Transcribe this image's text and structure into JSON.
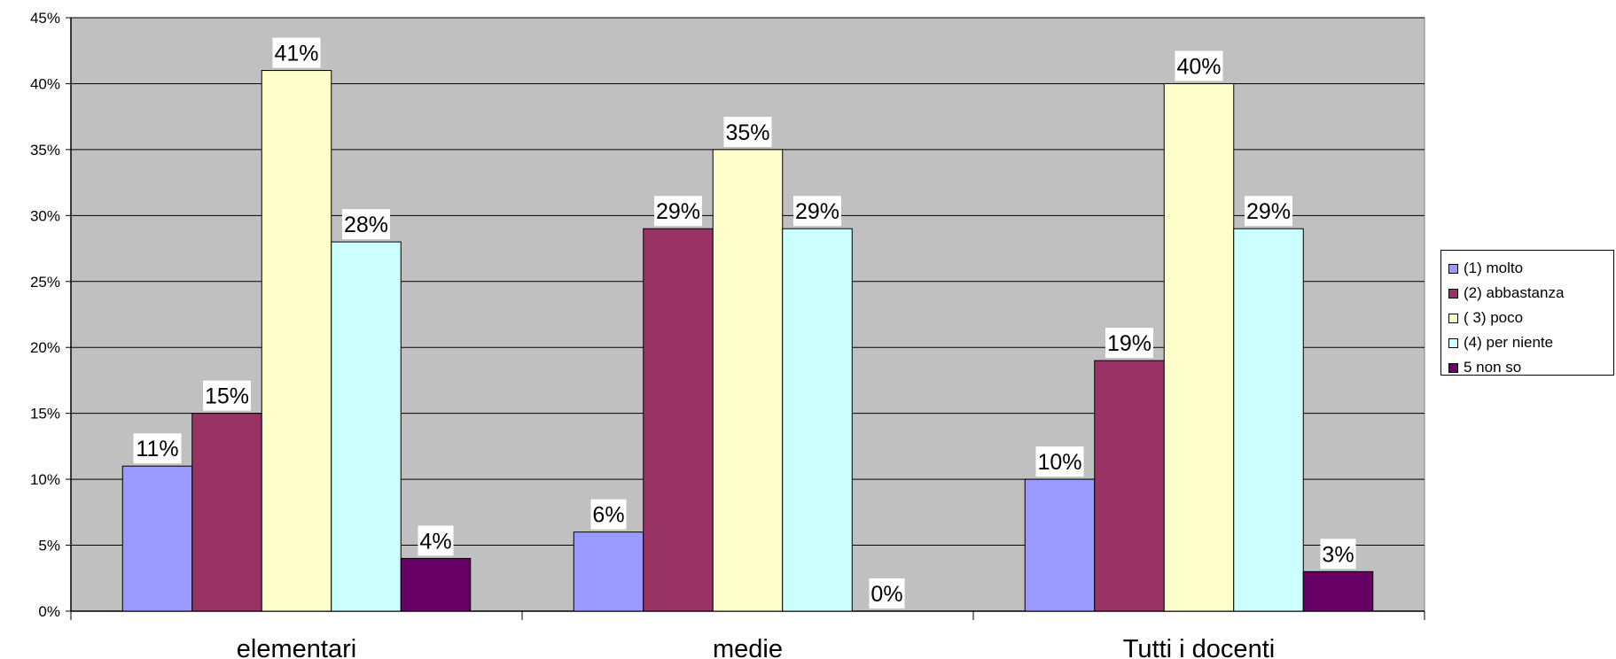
{
  "chart_data": {
    "type": "bar",
    "title": "",
    "xlabel": "",
    "ylabel": "",
    "categories": [
      "elementari",
      "medie",
      "Tutti i docenti"
    ],
    "series": [
      {
        "name": "(1) molto",
        "color": "#9999FF",
        "values": [
          11,
          6,
          10
        ],
        "labels": [
          "11%",
          "6%",
          "10%"
        ]
      },
      {
        "name": "(2) abbastanza",
        "color": "#993366",
        "values": [
          15,
          29,
          19
        ],
        "labels": [
          "15%",
          "29%",
          "19%"
        ]
      },
      {
        "name": "( 3) poco",
        "color": "#FFFFCC",
        "values": [
          41,
          35,
          40
        ],
        "labels": [
          "41%",
          "35%",
          "40%"
        ]
      },
      {
        "name": "(4) per niente",
        "color": "#CCFFFF",
        "values": [
          28,
          29,
          29
        ],
        "labels": [
          "28%",
          "29%",
          "29%"
        ]
      },
      {
        "name": "5 non so",
        "color": "#660066",
        "values": [
          4,
          0,
          3
        ],
        "labels": [
          "4%",
          "0%",
          "3%"
        ]
      }
    ],
    "ylim": [
      0,
      45
    ],
    "yticks": [
      "0%",
      "5%",
      "10%",
      "15%",
      "20%",
      "25%",
      "30%",
      "35%",
      "40%",
      "45%"
    ],
    "grid": true,
    "legend_position": "right",
    "plot_background": "#C0C0C0"
  }
}
